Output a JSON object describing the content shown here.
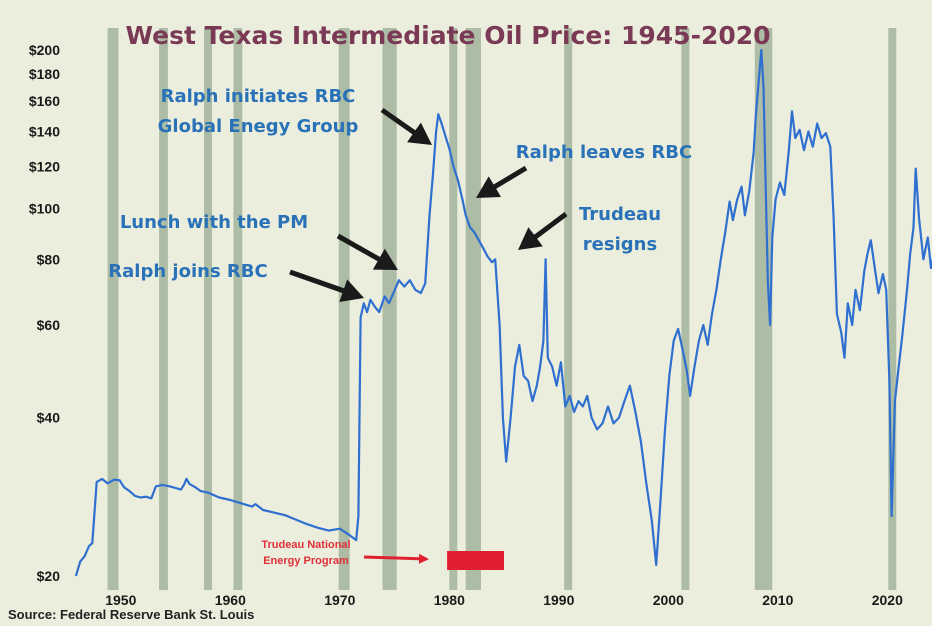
{
  "chart_data": {
    "type": "line",
    "title": "West Texas Intermediate Oil Price: 1945-2020",
    "y_scale": "log",
    "ylim": [
      20,
      200
    ],
    "xlim": [
      1945,
      2022
    ],
    "y_ticks": [
      {
        "value": 20,
        "label": "$20"
      },
      {
        "value": 40,
        "label": "$40"
      },
      {
        "value": 60,
        "label": "$60"
      },
      {
        "value": 80,
        "label": "$80"
      },
      {
        "value": 100,
        "label": "$100"
      },
      {
        "value": 120,
        "label": "$120"
      },
      {
        "value": 140,
        "label": "$140"
      },
      {
        "value": 160,
        "label": "$160"
      },
      {
        "value": 180,
        "label": "$180"
      },
      {
        "value": 200,
        "label": "$200"
      }
    ],
    "x_ticks": [
      {
        "value": 1950,
        "label": "1950"
      },
      {
        "value": 1960,
        "label": "1960"
      },
      {
        "value": 1970,
        "label": "1970"
      },
      {
        "value": 1980,
        "label": "1980"
      },
      {
        "value": 1990,
        "label": "1990"
      },
      {
        "value": 2000,
        "label": "2000"
      },
      {
        "value": 2010,
        "label": "2010"
      },
      {
        "value": 2020,
        "label": "2020"
      }
    ],
    "recessions": [
      [
        1948.8,
        1949.8
      ],
      [
        1953.5,
        1954.3
      ],
      [
        1957.6,
        1958.3
      ],
      [
        1960.3,
        1961.1
      ],
      [
        1969.9,
        1970.9
      ],
      [
        1973.9,
        1975.2
      ],
      [
        1980.0,
        1980.5
      ],
      [
        1981.5,
        1982.9
      ],
      [
        1990.5,
        1991.2
      ],
      [
        2001.2,
        2001.9
      ],
      [
        2007.9,
        2009.5
      ],
      [
        2020.1,
        2020.4
      ]
    ],
    "series": [
      {
        "color": "#2f6fd0",
        "points": [
          [
            1945.9,
            20.0
          ],
          [
            1946.3,
            21.3
          ],
          [
            1946.7,
            21.8
          ],
          [
            1947.1,
            22.8
          ],
          [
            1947.4,
            23.1
          ],
          [
            1947.8,
            30.2
          ],
          [
            1948.3,
            30.6
          ],
          [
            1948.8,
            30.0
          ],
          [
            1949.4,
            30.5
          ],
          [
            1949.9,
            30.4
          ],
          [
            1950.3,
            29.5
          ],
          [
            1950.8,
            29.0
          ],
          [
            1951.3,
            28.4
          ],
          [
            1951.8,
            28.2
          ],
          [
            1952.3,
            28.3
          ],
          [
            1952.8,
            28.1
          ],
          [
            1953.2,
            29.6
          ],
          [
            1953.8,
            29.8
          ],
          [
            1954.5,
            29.6
          ],
          [
            1955.0,
            29.4
          ],
          [
            1955.5,
            29.2
          ],
          [
            1955.8,
            29.9
          ],
          [
            1956.0,
            30.6
          ],
          [
            1956.3,
            29.9
          ],
          [
            1956.8,
            29.5
          ],
          [
            1957.3,
            29.0
          ],
          [
            1958.0,
            28.8
          ],
          [
            1959.0,
            28.2
          ],
          [
            1960.0,
            27.9
          ],
          [
            1961.0,
            27.5
          ],
          [
            1962.0,
            27.1
          ],
          [
            1962.3,
            27.4
          ],
          [
            1963.0,
            26.7
          ],
          [
            1964.0,
            26.4
          ],
          [
            1965.0,
            26.1
          ],
          [
            1966.0,
            25.6
          ],
          [
            1967.0,
            25.1
          ],
          [
            1968.0,
            24.7
          ],
          [
            1969.0,
            24.4
          ],
          [
            1970.0,
            24.6
          ],
          [
            1970.8,
            24.0
          ],
          [
            1971.5,
            23.4
          ],
          [
            1971.7,
            26.0
          ],
          [
            1971.9,
            62.0
          ],
          [
            1972.2,
            66.0
          ],
          [
            1972.5,
            63.5
          ],
          [
            1972.8,
            67.0
          ],
          [
            1973.2,
            65.0
          ],
          [
            1973.6,
            63.5
          ],
          [
            1974.1,
            68.0
          ],
          [
            1974.5,
            66.0
          ],
          [
            1974.9,
            69.0
          ],
          [
            1975.4,
            73.0
          ],
          [
            1975.9,
            71.0
          ],
          [
            1976.4,
            73.0
          ],
          [
            1976.9,
            70.0
          ],
          [
            1977.4,
            69.0
          ],
          [
            1977.8,
            72.0
          ],
          [
            1978.2,
            97.0
          ],
          [
            1978.5,
            115.0
          ],
          [
            1978.8,
            140.0
          ],
          [
            1979.0,
            151.0
          ],
          [
            1979.3,
            145.0
          ],
          [
            1979.7,
            136.0
          ],
          [
            1980.0,
            130.0
          ],
          [
            1980.4,
            120.0
          ],
          [
            1980.8,
            113.0
          ],
          [
            1981.2,
            104.0
          ],
          [
            1981.5,
            97.0
          ],
          [
            1981.9,
            92.0
          ],
          [
            1982.3,
            90.0
          ],
          [
            1982.7,
            87.0
          ],
          [
            1983.1,
            84.0
          ],
          [
            1983.5,
            81.0
          ],
          [
            1983.9,
            79.0
          ],
          [
            1984.2,
            80.0
          ],
          [
            1984.6,
            60.0
          ],
          [
            1984.9,
            40.0
          ],
          [
            1985.2,
            33.0
          ],
          [
            1985.6,
            40.0
          ],
          [
            1986.0,
            50.0
          ],
          [
            1986.4,
            55.0
          ],
          [
            1986.8,
            48.0
          ],
          [
            1987.2,
            47.0
          ],
          [
            1987.6,
            43.0
          ],
          [
            1988.0,
            46.0
          ],
          [
            1988.3,
            50.0
          ],
          [
            1988.6,
            56.0
          ],
          [
            1988.8,
            80.0
          ],
          [
            1989.0,
            52.0
          ],
          [
            1989.4,
            50.0
          ],
          [
            1989.8,
            46.0
          ],
          [
            1990.2,
            51.0
          ],
          [
            1990.6,
            42.0
          ],
          [
            1991.0,
            44.0
          ],
          [
            1991.4,
            41.0
          ],
          [
            1991.8,
            43.0
          ],
          [
            1992.2,
            42.0
          ],
          [
            1992.6,
            44.0
          ],
          [
            1993.0,
            40.0
          ],
          [
            1993.5,
            38.0
          ],
          [
            1994.0,
            39.0
          ],
          [
            1994.5,
            42.0
          ],
          [
            1995.0,
            39.0
          ],
          [
            1995.5,
            40.0
          ],
          [
            1996.0,
            43.0
          ],
          [
            1996.5,
            46.0
          ],
          [
            1997.0,
            41.0
          ],
          [
            1997.5,
            36.0
          ],
          [
            1998.0,
            30.0
          ],
          [
            1998.5,
            25.5
          ],
          [
            1998.9,
            21.0
          ],
          [
            1999.3,
            28.0
          ],
          [
            1999.7,
            38.0
          ],
          [
            2000.1,
            48.0
          ],
          [
            2000.5,
            56.0
          ],
          [
            2000.9,
            59.0
          ],
          [
            2001.3,
            54.0
          ],
          [
            2001.7,
            49.0
          ],
          [
            2002.0,
            44.0
          ],
          [
            2002.4,
            50.0
          ],
          [
            2002.8,
            56.0
          ],
          [
            2003.2,
            60.0
          ],
          [
            2003.6,
            55.0
          ],
          [
            2004.0,
            63.0
          ],
          [
            2004.4,
            70.0
          ],
          [
            2004.8,
            80.0
          ],
          [
            2005.2,
            90.0
          ],
          [
            2005.6,
            103.0
          ],
          [
            2005.9,
            95.0
          ],
          [
            2006.3,
            104.0
          ],
          [
            2006.7,
            110.0
          ],
          [
            2007.0,
            97.0
          ],
          [
            2007.4,
            108.0
          ],
          [
            2007.8,
            128.0
          ],
          [
            2008.0,
            150.0
          ],
          [
            2008.3,
            178.0
          ],
          [
            2008.5,
            200.0
          ],
          [
            2008.7,
            170.0
          ],
          [
            2008.9,
            110.0
          ],
          [
            2009.1,
            72.0
          ],
          [
            2009.3,
            60.0
          ],
          [
            2009.5,
            88.0
          ],
          [
            2009.8,
            104.0
          ],
          [
            2010.2,
            112.0
          ],
          [
            2010.6,
            106.0
          ],
          [
            2011.0,
            128.0
          ],
          [
            2011.3,
            153.0
          ],
          [
            2011.6,
            136.0
          ],
          [
            2012.0,
            141.0
          ],
          [
            2012.4,
            129.0
          ],
          [
            2012.8,
            140.0
          ],
          [
            2013.2,
            131.0
          ],
          [
            2013.6,
            145.0
          ],
          [
            2014.0,
            136.0
          ],
          [
            2014.4,
            139.0
          ],
          [
            2014.8,
            131.0
          ],
          [
            2015.1,
            96.0
          ],
          [
            2015.4,
            63.0
          ],
          [
            2015.8,
            58.0
          ],
          [
            2016.1,
            52.0
          ],
          [
            2016.4,
            66.0
          ],
          [
            2016.8,
            60.0
          ],
          [
            2017.1,
            70.0
          ],
          [
            2017.5,
            64.0
          ],
          [
            2017.9,
            76.0
          ],
          [
            2018.2,
            82.0
          ],
          [
            2018.5,
            87.0
          ],
          [
            2018.9,
            76.0
          ],
          [
            2019.2,
            69.0
          ],
          [
            2019.6,
            75.0
          ],
          [
            2019.9,
            70.0
          ],
          [
            2020.2,
            47.0
          ],
          [
            2020.4,
            26.0
          ],
          [
            2020.7,
            43.0
          ],
          [
            2021.0,
            49.0
          ],
          [
            2021.4,
            58.0
          ],
          [
            2021.8,
            70.0
          ],
          [
            2022.1,
            82.0
          ],
          [
            2022.4,
            92.0
          ],
          [
            2022.6,
            119.0
          ],
          [
            2022.9,
            96.0
          ],
          [
            2023.3,
            80.0
          ],
          [
            2023.7,
            88.0
          ],
          [
            2024.0,
            77.0
          ],
          [
            2024.3,
            82.0
          ],
          [
            2024.7,
            72.0
          ],
          [
            2025.0,
            87.0
          ],
          [
            2025.3,
            70.0
          ]
        ]
      }
    ],
    "annotations": [
      {
        "lines": [
          "Ralph initiates RBC",
          "Global Enegy Group"
        ]
      },
      {
        "lines": [
          "Ralph leaves RBC"
        ]
      },
      {
        "lines": [
          "Trudeau",
          "resigns"
        ]
      },
      {
        "lines": [
          "Lunch with the PM"
        ]
      },
      {
        "lines": [
          "Ralph joins RBC"
        ]
      }
    ],
    "program_label": [
      "Trudeau National",
      "Energy Program"
    ],
    "program_range": [
      1979.8,
      1985.0
    ],
    "source": "Source: Federal Reserve Bank St. Louis",
    "colors": {
      "background": "#eceedd",
      "recession_band": "#97ab92",
      "line": "#2f6fd0",
      "annotation_text": "#2a72b8",
      "arrow": "#1a1a1a",
      "program": "#e02030",
      "title": "#7a3a55"
    }
  }
}
